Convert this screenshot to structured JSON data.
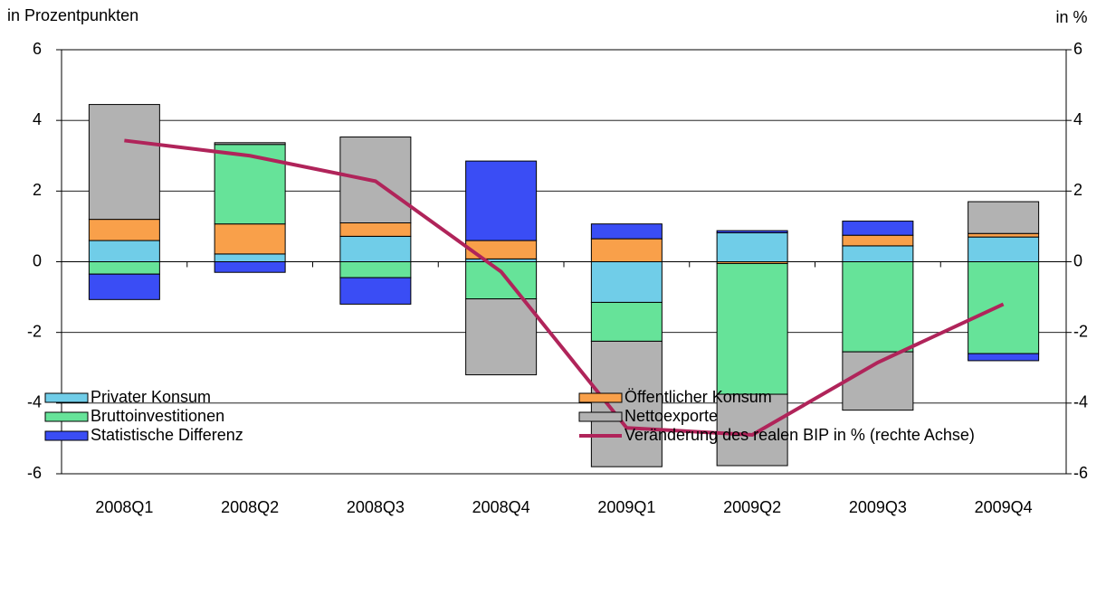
{
  "chart_data": {
    "type": "bar",
    "left_axis_label": "in Prozentpunkten",
    "right_axis_label": "in %",
    "categories": [
      "2008Q1",
      "2008Q2",
      "2008Q3",
      "2008Q4",
      "2009Q1",
      "2009Q2",
      "2009Q3",
      "2009Q4"
    ],
    "ylim": [
      -6,
      6
    ],
    "yticks": [
      -6,
      -4,
      -2,
      0,
      2,
      4,
      6
    ],
    "y2lim": [
      -6,
      6
    ],
    "y2ticks": [
      -6,
      -4,
      -2,
      0,
      2,
      4,
      6
    ],
    "grid": true,
    "stacked": true,
    "series": [
      {
        "name": "Privater Konsum",
        "color": "#70cde8",
        "values": [
          0.6,
          0.22,
          0.72,
          0.08,
          -1.15,
          0.82,
          0.45,
          0.7
        ]
      },
      {
        "name": "Öffentlicher Konsum",
        "color": "#f9a04a",
        "values": [
          0.6,
          0.85,
          0.38,
          0.52,
          0.65,
          -0.05,
          0.3,
          0.1
        ]
      },
      {
        "name": "Bruttoinvestitionen",
        "color": "#66e399",
        "values": [
          -0.35,
          2.25,
          -0.45,
          -1.05,
          -1.1,
          -3.7,
          -2.55,
          -2.6
        ]
      },
      {
        "name": "Nettoexporte",
        "color": "#b2b2b2",
        "values": [
          3.25,
          0.05,
          2.43,
          -2.15,
          -3.55,
          -2.02,
          -1.65,
          0.9
        ]
      },
      {
        "name": "Statistische Differenz",
        "color": "#3a4df5",
        "values": [
          -0.72,
          -0.3,
          -0.75,
          2.25,
          0.42,
          0.06,
          0.4,
          -0.2
        ]
      },
      {
        "name": "Veränderung des realen BIP in % (rechte Achse)",
        "color": "#b0245a",
        "type": "line",
        "axis": "y2",
        "values": [
          3.43,
          3.0,
          2.28,
          -0.28,
          -4.7,
          -4.9,
          -2.85,
          -1.2
        ]
      }
    ]
  }
}
